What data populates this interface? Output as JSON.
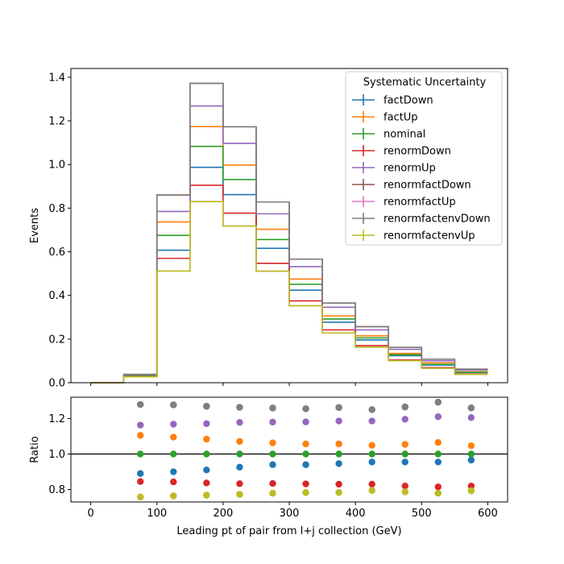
{
  "chart_data": [
    {
      "type": "line",
      "subtype": "step-histogram",
      "ylabel": "Events",
      "xlabel": "",
      "xlim": [
        -30,
        630
      ],
      "ylim": [
        0,
        1.44
      ],
      "xticks": [
        0,
        100,
        200,
        300,
        400,
        500,
        600
      ],
      "yticks": [
        0.0,
        0.2,
        0.4,
        0.6,
        0.8,
        1.0,
        1.2,
        1.4
      ],
      "ytick_labels": [
        "0.0",
        "0.2",
        "0.4",
        "0.6",
        "0.8",
        "1.0",
        "1.2",
        "1.4"
      ],
      "bin_edges": [
        0,
        50,
        100,
        150,
        200,
        250,
        300,
        350,
        400,
        450,
        500,
        550,
        600
      ],
      "legend": {
        "title": "Systematic Uncertainty",
        "placement": "top-right"
      },
      "series": [
        {
          "name": "factDown",
          "color": "#1f77b4",
          "values": [
            0.0,
            0.029,
            0.607,
            0.987,
            0.862,
            0.616,
            0.424,
            0.277,
            0.196,
            0.124,
            0.081,
            0.047
          ]
        },
        {
          "name": "factUp",
          "color": "#ff7f0e",
          "values": [
            0.0,
            0.035,
            0.737,
            1.174,
            0.997,
            0.703,
            0.475,
            0.306,
            0.215,
            0.134,
            0.091,
            0.05
          ]
        },
        {
          "name": "nominal",
          "color": "#2ca02c",
          "values": [
            0.0,
            0.032,
            0.675,
            1.083,
            0.931,
            0.656,
            0.451,
            0.292,
            0.205,
            0.128,
            0.084,
            0.048
          ]
        },
        {
          "name": "renormDown",
          "color": "#d62728",
          "values": [
            0.0,
            0.028,
            0.57,
            0.905,
            0.777,
            0.547,
            0.375,
            0.242,
            0.17,
            0.104,
            0.069,
            0.04
          ]
        },
        {
          "name": "renormUp",
          "color": "#9467bd",
          "values": [
            0.0,
            0.037,
            0.785,
            1.268,
            1.097,
            0.774,
            0.532,
            0.346,
            0.242,
            0.153,
            0.101,
            0.058
          ]
        },
        {
          "name": "renormfactDown",
          "color": "#8c564b",
          "values": [
            0.0,
            0.038,
            0.86,
            1.372,
            1.173,
            0.828,
            0.566,
            0.365,
            0.257,
            0.162,
            0.108,
            0.062
          ]
        },
        {
          "name": "renormfactUp",
          "color": "#e377c2",
          "values": [
            0.0,
            0.027,
            0.512,
            0.83,
            0.718,
            0.511,
            0.353,
            0.228,
            0.163,
            0.101,
            0.066,
            0.038
          ]
        },
        {
          "name": "renormfactenvDown",
          "color": "#7f7f7f",
          "values": [
            0.0,
            0.038,
            0.86,
            1.372,
            1.173,
            0.828,
            0.566,
            0.365,
            0.257,
            0.162,
            0.108,
            0.062
          ]
        },
        {
          "name": "renormfactenvUp",
          "color": "#bcbd22",
          "values": [
            0.0,
            0.027,
            0.512,
            0.83,
            0.718,
            0.511,
            0.353,
            0.228,
            0.163,
            0.101,
            0.066,
            0.038
          ]
        }
      ]
    },
    {
      "type": "scatter",
      "ylabel": "Ratio",
      "xlabel": "Leading pt of pair from l+j collection (GeV)",
      "xlim": [
        -30,
        630
      ],
      "ylim": [
        0.73,
        1.32
      ],
      "xticks": [
        0,
        100,
        200,
        300,
        400,
        500,
        600
      ],
      "xtick_labels": [
        "0",
        "100",
        "200",
        "300",
        "400",
        "500",
        "600"
      ],
      "yticks": [
        0.8,
        1.0,
        1.2
      ],
      "ytick_labels": [
        "0.8",
        "1.0",
        "1.2"
      ],
      "reference_line": 1.0,
      "x": [
        75,
        125,
        175,
        225,
        275,
        325,
        375,
        425,
        475,
        525,
        575
      ],
      "series": [
        {
          "name": "factDown",
          "color": "#1f77b4",
          "values": [
            0.89,
            0.9,
            0.91,
            0.926,
            0.94,
            0.94,
            0.946,
            0.955,
            0.955,
            0.955,
            0.966
          ]
        },
        {
          "name": "factUp",
          "color": "#ff7f0e",
          "values": [
            1.105,
            1.095,
            1.084,
            1.071,
            1.063,
            1.057,
            1.057,
            1.049,
            1.054,
            1.065,
            1.047
          ]
        },
        {
          "name": "nominal",
          "color": "#2ca02c",
          "values": [
            1.0,
            1.0,
            1.0,
            1.0,
            1.0,
            1.0,
            1.0,
            1.0,
            1.0,
            1.0,
            1.0
          ]
        },
        {
          "name": "renormDown",
          "color": "#d62728",
          "values": [
            0.845,
            0.843,
            0.837,
            0.833,
            0.834,
            0.832,
            0.83,
            0.83,
            0.82,
            0.815,
            0.82
          ]
        },
        {
          "name": "renormUp",
          "color": "#9467bd",
          "values": [
            1.163,
            1.168,
            1.171,
            1.178,
            1.18,
            1.181,
            1.186,
            1.186,
            1.196,
            1.21,
            1.205
          ]
        },
        {
          "name": "renormfactDown",
          "color": "#8c564b",
          "values": [
            1.279,
            1.277,
            1.269,
            1.263,
            1.259,
            1.255,
            1.262,
            1.25,
            1.265,
            1.292,
            1.26
          ]
        },
        {
          "name": "renormfactUp",
          "color": "#e377c2",
          "values": [
            0.758,
            0.764,
            0.768,
            0.773,
            0.779,
            0.783,
            0.783,
            0.795,
            0.787,
            0.779,
            0.793
          ]
        },
        {
          "name": "renormfactenvDown",
          "color": "#7f7f7f",
          "values": [
            1.279,
            1.277,
            1.269,
            1.263,
            1.259,
            1.255,
            1.262,
            1.25,
            1.265,
            1.292,
            1.26
          ]
        },
        {
          "name": "renormfactenvUp",
          "color": "#bcbd22",
          "values": [
            0.758,
            0.764,
            0.768,
            0.773,
            0.779,
            0.783,
            0.783,
            0.795,
            0.787,
            0.779,
            0.793
          ]
        }
      ]
    }
  ]
}
